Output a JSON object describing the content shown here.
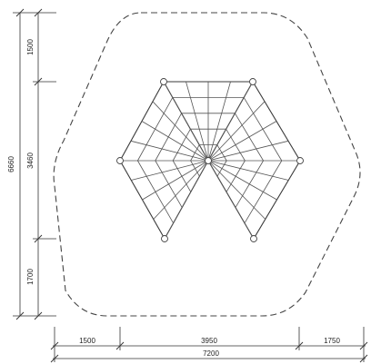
{
  "dimensions": {
    "left": {
      "total": "6660",
      "top": "1500",
      "middle": "3460",
      "bottom": "1700"
    },
    "bottom": {
      "left": "1500",
      "middle": "3950",
      "right": "1750",
      "total": "7200"
    }
  }
}
